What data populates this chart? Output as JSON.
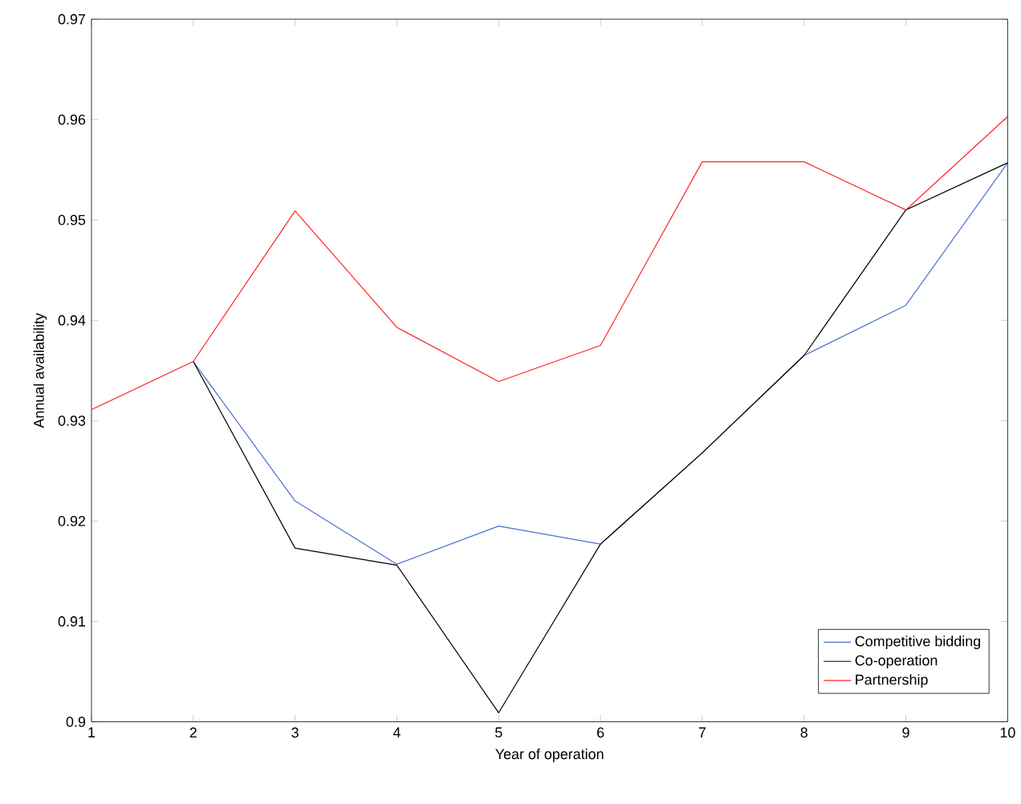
{
  "chart_data": {
    "type": "line",
    "xlabel": "Year of operation",
    "ylabel": "Annual availability",
    "x": [
      1,
      2,
      3,
      4,
      5,
      6,
      7,
      8,
      9,
      10
    ],
    "series": [
      {
        "name": "Competitive bidding",
        "color": "#4a6fcf",
        "values": [
          null,
          0.9359,
          0.922,
          0.9157,
          0.9195,
          0.9177,
          0.9268,
          0.9365,
          0.9415,
          0.9557
        ]
      },
      {
        "name": "Co-operation",
        "color": "#000000",
        "values": [
          null,
          0.9359,
          0.9173,
          0.9156,
          0.9009,
          0.9177,
          0.9268,
          0.9365,
          0.951,
          0.9557
        ]
      },
      {
        "name": "Partnership",
        "color": "#ff2020",
        "values": [
          0.9311,
          0.9359,
          0.9509,
          0.9393,
          0.9339,
          0.9375,
          0.9558,
          0.9558,
          0.951,
          0.9603
        ]
      }
    ],
    "xlim": [
      1,
      10
    ],
    "xticks": [
      1,
      2,
      3,
      4,
      5,
      6,
      7,
      8,
      9,
      10
    ],
    "ylim": [
      0.9,
      0.97
    ],
    "yticks": [
      0.9,
      0.91,
      0.92,
      0.93,
      0.94,
      0.95,
      0.96,
      0.97
    ],
    "grid": false,
    "legend": "bottom right",
    "marker": "none",
    "line_style": "solid"
  }
}
